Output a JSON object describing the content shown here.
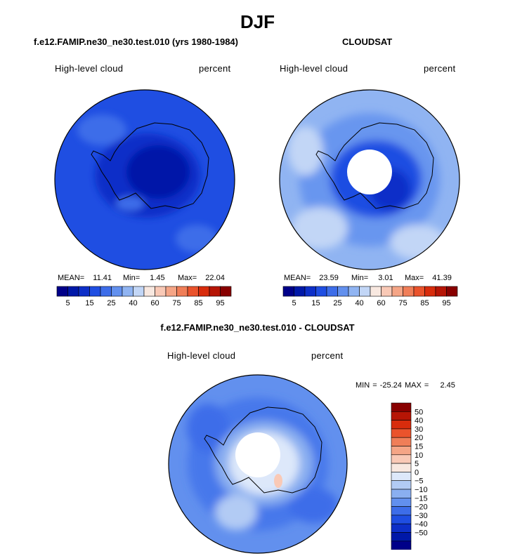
{
  "page": {
    "title": "DJF",
    "footer_title": "f.e12.FAMIP.ne30_ne30.test.010 - CLOUDSAT"
  },
  "panels": [
    {
      "title": "f.e12.FAMIP.ne30_ne30.test.010 (yrs 1980-1984)",
      "left_label": "High-level cloud",
      "right_label": "percent",
      "stats": {
        "mean_label": "MEAN=",
        "mean": "11.41",
        "min_label": "Min=",
        "min": "1.45",
        "max_label": "Max=",
        "max": "22.04"
      }
    },
    {
      "title": "CLOUDSAT",
      "left_label": "High-level cloud",
      "right_label": "percent",
      "stats": {
        "mean_label": "MEAN=",
        "mean": "23.59",
        "min_label": "Min=",
        "min": "3.01",
        "max_label": "Max=",
        "max": "41.39"
      }
    },
    {
      "left_label": "High-level cloud",
      "right_label": "percent",
      "minmax_text": "MIN = -25.24 MAX =    2.45"
    }
  ],
  "colorbars": {
    "abs": {
      "colors": [
        "#000089",
        "#0018a8",
        "#0d2fc8",
        "#1f4ee2",
        "#3d6de9",
        "#6290ee",
        "#90b4f2",
        "#c2d6f6",
        "#f8e8e0",
        "#f9c9b6",
        "#f5a586",
        "#f07e58",
        "#ea532c",
        "#d82c0c",
        "#b61505",
        "#880000"
      ],
      "labels": [
        "5",
        "15",
        "25",
        "40",
        "60",
        "75",
        "85",
        "95"
      ]
    },
    "diff": {
      "colors": [
        "#880000",
        "#b61505",
        "#d82c0c",
        "#ea532c",
        "#f07e58",
        "#f5a586",
        "#f9c9b6",
        "#f8e8e0",
        "#dde8fa",
        "#b2cbf4",
        "#8aaff0",
        "#6290ee",
        "#3d6de9",
        "#1f4ee2",
        "#0d2fc8",
        "#0018a8",
        "#000089"
      ],
      "labels": [
        "50",
        "40",
        "30",
        "20",
        "15",
        "10",
        "5",
        "0",
        "−5",
        "−10",
        "−15",
        "−20",
        "−30",
        "−40",
        "−50"
      ]
    }
  },
  "chart_data": [
    {
      "type": "heatmap",
      "title": "f.e12.FAMIP.ne30_ne30.test.010 (yrs 1980-1984)",
      "field": "High-level cloud",
      "units": "percent",
      "projection": "south polar stereographic",
      "mean": 11.41,
      "min": 1.45,
      "max": 22.04,
      "contour_levels": [
        5,
        10,
        15,
        20,
        25,
        30,
        40,
        50,
        60,
        70,
        75,
        80,
        85,
        90,
        95
      ]
    },
    {
      "type": "heatmap",
      "title": "CLOUDSAT",
      "field": "High-level cloud",
      "units": "percent",
      "projection": "south polar stereographic",
      "mean": 23.59,
      "min": 3.01,
      "max": 41.39,
      "contour_levels": [
        5,
        10,
        15,
        20,
        25,
        30,
        40,
        50,
        60,
        70,
        75,
        80,
        85,
        90,
        95
      ]
    },
    {
      "type": "heatmap",
      "title": "f.e12.FAMIP.ne30_ne30.test.010 - CLOUDSAT",
      "field": "High-level cloud",
      "units": "percent",
      "projection": "south polar stereographic",
      "min": -25.24,
      "max": 2.45,
      "contour_levels": [
        -50,
        -40,
        -30,
        -20,
        -15,
        -10,
        -5,
        0,
        5,
        10,
        15,
        20,
        30,
        40,
        50
      ]
    }
  ]
}
